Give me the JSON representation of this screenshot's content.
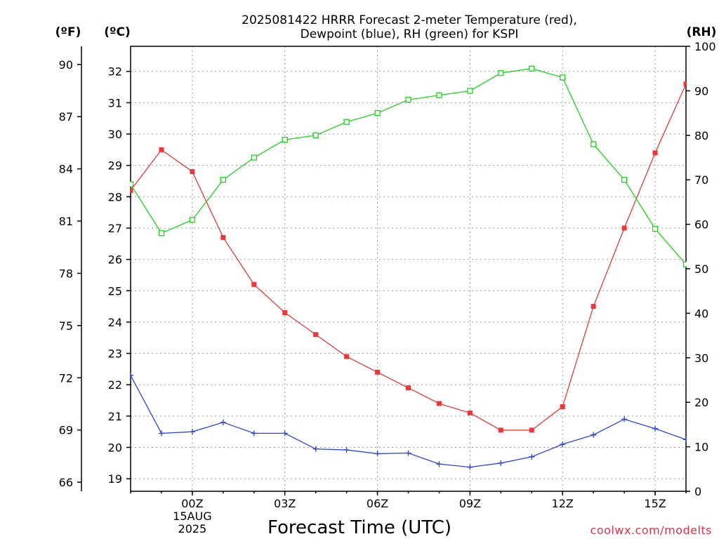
{
  "chart_data": {
    "type": "line",
    "title_line1": "2025081422 HRRR Forecast 2-meter Temperature (red),",
    "title_line2": "Dewpoint (blue), RH (green) for KSPI",
    "xlabel": "Forecast Time (UTC)",
    "credit": "coolwx.com/modelts",
    "units": {
      "fahrenheit": "(ºF)",
      "celsius": "(ºC)",
      "rh": "(RH)"
    },
    "x_hours": [
      -2,
      -1,
      0,
      1,
      2,
      3,
      4,
      5,
      6,
      7,
      8,
      9,
      10,
      11,
      12,
      13,
      14,
      15,
      16
    ],
    "x_ticks": [
      {
        "hour": 0,
        "label": "00Z"
      },
      {
        "hour": 3,
        "label": "03Z"
      },
      {
        "hour": 6,
        "label": "06Z"
      },
      {
        "hour": 9,
        "label": "09Z"
      },
      {
        "hour": 12,
        "label": "12Z"
      },
      {
        "hour": 15,
        "label": "15Z"
      }
    ],
    "date_label": [
      "15AUG",
      "2025"
    ],
    "xlim": [
      -2,
      16
    ],
    "ylim_c": [
      18.6,
      32.8
    ],
    "ylim_rh": [
      0,
      100
    ],
    "celsius_ticks": [
      19,
      20,
      21,
      22,
      23,
      24,
      25,
      26,
      27,
      28,
      29,
      30,
      31,
      32
    ],
    "fahrenheit_ticks": [
      66,
      69,
      72,
      75,
      78,
      81,
      84,
      87,
      90
    ],
    "rh_ticks": [
      0,
      10,
      20,
      30,
      40,
      50,
      60,
      70,
      80,
      90,
      100
    ],
    "grid": true,
    "series": [
      {
        "name": "Temperature",
        "axis": "celsius",
        "color": "#e83838",
        "marker": "filled-square",
        "values": [
          28.2,
          29.5,
          28.8,
          26.7,
          25.2,
          24.3,
          23.6,
          22.9,
          22.4,
          21.9,
          21.4,
          21.1,
          20.55,
          20.55,
          21.3,
          24.5,
          27.0,
          29.4,
          31.6
        ]
      },
      {
        "name": "Dewpoint",
        "axis": "celsius",
        "color": "#2a44e8",
        "marker": "plus",
        "values": [
          22.3,
          20.45,
          20.5,
          20.8,
          20.45,
          20.45,
          19.95,
          19.92,
          19.8,
          19.82,
          19.47,
          19.37,
          19.5,
          19.7,
          20.1,
          20.4,
          20.9,
          20.6,
          20.25
        ]
      },
      {
        "name": "RH",
        "axis": "rh",
        "color": "#1ed21e",
        "marker": "open-square",
        "values": [
          69,
          58,
          61,
          70,
          75,
          79,
          80,
          83,
          85,
          88,
          89,
          90,
          94,
          95,
          93,
          78,
          70,
          59,
          51
        ]
      }
    ]
  }
}
